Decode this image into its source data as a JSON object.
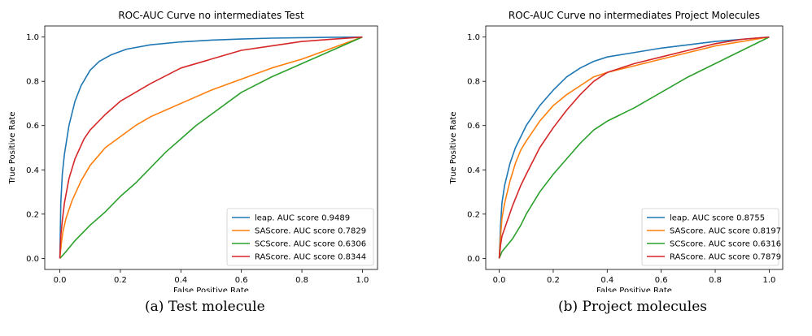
{
  "chart_data": [
    {
      "type": "line",
      "title": "ROC-AUC Curve no intermediates Test",
      "xlabel": "False Positive Rate",
      "ylabel": "True Positive Rate",
      "xlim": [
        -0.05,
        1.05
      ],
      "ylim": [
        -0.05,
        1.05
      ],
      "xticks": [
        "0.0",
        "0.2",
        "0.4",
        "0.6",
        "0.8",
        "1.0"
      ],
      "yticks": [
        "0.0",
        "0.2",
        "0.4",
        "0.6",
        "0.8",
        "1.0"
      ],
      "grid": false,
      "legend": "lower-right",
      "caption": "(a) Test molecule",
      "series": [
        {
          "name": "leap. AUC score 0.9489",
          "color": "#1f77b4",
          "points": [
            [
              0,
              0
            ],
            [
              0.003,
              0.25
            ],
            [
              0.008,
              0.38
            ],
            [
              0.015,
              0.47
            ],
            [
              0.03,
              0.6
            ],
            [
              0.05,
              0.71
            ],
            [
              0.07,
              0.78
            ],
            [
              0.1,
              0.85
            ],
            [
              0.13,
              0.89
            ],
            [
              0.17,
              0.92
            ],
            [
              0.22,
              0.945
            ],
            [
              0.3,
              0.965
            ],
            [
              0.4,
              0.978
            ],
            [
              0.5,
              0.986
            ],
            [
              0.6,
              0.991
            ],
            [
              0.7,
              0.995
            ],
            [
              0.8,
              0.997
            ],
            [
              0.9,
              0.999
            ],
            [
              1,
              1
            ]
          ]
        },
        {
          "name": "SAScore. AUC score 0.7829",
          "color": "#ff7f0e",
          "points": [
            [
              0,
              0
            ],
            [
              0.005,
              0.07
            ],
            [
              0.01,
              0.12
            ],
            [
              0.02,
              0.18
            ],
            [
              0.04,
              0.26
            ],
            [
              0.07,
              0.35
            ],
            [
              0.1,
              0.42
            ],
            [
              0.15,
              0.5
            ],
            [
              0.2,
              0.55
            ],
            [
              0.25,
              0.6
            ],
            [
              0.3,
              0.64
            ],
            [
              0.35,
              0.67
            ],
            [
              0.4,
              0.7
            ],
            [
              0.5,
              0.76
            ],
            [
              0.6,
              0.81
            ],
            [
              0.7,
              0.86
            ],
            [
              0.8,
              0.9
            ],
            [
              0.9,
              0.95
            ],
            [
              1,
              1
            ]
          ]
        },
        {
          "name": "SCScore. AUC score 0.6306",
          "color": "#2ca02c",
          "points": [
            [
              0,
              0
            ],
            [
              0.02,
              0.03
            ],
            [
              0.05,
              0.08
            ],
            [
              0.1,
              0.15
            ],
            [
              0.15,
              0.21
            ],
            [
              0.2,
              0.28
            ],
            [
              0.25,
              0.34
            ],
            [
              0.3,
              0.41
            ],
            [
              0.35,
              0.48
            ],
            [
              0.4,
              0.54
            ],
            [
              0.45,
              0.6
            ],
            [
              0.5,
              0.65
            ],
            [
              0.55,
              0.7
            ],
            [
              0.6,
              0.75
            ],
            [
              0.7,
              0.82
            ],
            [
              0.8,
              0.88
            ],
            [
              0.9,
              0.94
            ],
            [
              1,
              1
            ]
          ]
        },
        {
          "name": "RAScore. AUC score 0.8344",
          "color": "#d62728",
          "points": [
            [
              0,
              0
            ],
            [
              0.003,
              0.1
            ],
            [
              0.008,
              0.17
            ],
            [
              0.015,
              0.25
            ],
            [
              0.03,
              0.36
            ],
            [
              0.05,
              0.45
            ],
            [
              0.08,
              0.54
            ],
            [
              0.1,
              0.58
            ],
            [
              0.15,
              0.65
            ],
            [
              0.2,
              0.71
            ],
            [
              0.25,
              0.75
            ],
            [
              0.3,
              0.79
            ],
            [
              0.4,
              0.86
            ],
            [
              0.5,
              0.9
            ],
            [
              0.6,
              0.94
            ],
            [
              0.7,
              0.96
            ],
            [
              0.8,
              0.98
            ],
            [
              0.9,
              0.99
            ],
            [
              1,
              1
            ]
          ]
        }
      ]
    },
    {
      "type": "line",
      "title": "ROC-AUC Curve no intermediates Project Molecules",
      "xlabel": "False Positive Rate",
      "ylabel": "True Positive Rate",
      "xlim": [
        -0.05,
        1.05
      ],
      "ylim": [
        -0.05,
        1.05
      ],
      "xticks": [
        "0.0",
        "0.2",
        "0.4",
        "0.6",
        "0.8",
        "1.0"
      ],
      "yticks": [
        "0.0",
        "0.2",
        "0.4",
        "0.6",
        "0.8",
        "1.0"
      ],
      "grid": false,
      "legend": "lower-right",
      "caption": "(b) Project molecules",
      "series": [
        {
          "name": "leap. AUC score 0.8755",
          "color": "#1f77b4",
          "points": [
            [
              0,
              0
            ],
            [
              0.005,
              0.15
            ],
            [
              0.01,
              0.25
            ],
            [
              0.02,
              0.33
            ],
            [
              0.04,
              0.43
            ],
            [
              0.06,
              0.5
            ],
            [
              0.08,
              0.55
            ],
            [
              0.1,
              0.6
            ],
            [
              0.15,
              0.69
            ],
            [
              0.2,
              0.76
            ],
            [
              0.25,
              0.82
            ],
            [
              0.3,
              0.86
            ],
            [
              0.35,
              0.89
            ],
            [
              0.4,
              0.91
            ],
            [
              0.5,
              0.93
            ],
            [
              0.6,
              0.95
            ],
            [
              0.7,
              0.965
            ],
            [
              0.8,
              0.98
            ],
            [
              0.9,
              0.99
            ],
            [
              1,
              1
            ]
          ]
        },
        {
          "name": "SAScore. AUC score 0.8197",
          "color": "#ff7f0e",
          "points": [
            [
              0,
              0
            ],
            [
              0.005,
              0.1
            ],
            [
              0.01,
              0.18
            ],
            [
              0.02,
              0.25
            ],
            [
              0.04,
              0.35
            ],
            [
              0.06,
              0.43
            ],
            [
              0.08,
              0.49
            ],
            [
              0.1,
              0.53
            ],
            [
              0.15,
              0.62
            ],
            [
              0.2,
              0.69
            ],
            [
              0.25,
              0.74
            ],
            [
              0.3,
              0.78
            ],
            [
              0.35,
              0.82
            ],
            [
              0.4,
              0.84
            ],
            [
              0.5,
              0.87
            ],
            [
              0.6,
              0.9
            ],
            [
              0.7,
              0.93
            ],
            [
              0.8,
              0.96
            ],
            [
              0.9,
              0.98
            ],
            [
              1,
              1
            ]
          ]
        },
        {
          "name": "SCScore. AUC score 0.6316",
          "color": "#2ca02c",
          "points": [
            [
              0,
              0
            ],
            [
              0.01,
              0.03
            ],
            [
              0.03,
              0.06
            ],
            [
              0.05,
              0.09
            ],
            [
              0.08,
              0.15
            ],
            [
              0.1,
              0.2
            ],
            [
              0.15,
              0.3
            ],
            [
              0.2,
              0.38
            ],
            [
              0.25,
              0.45
            ],
            [
              0.3,
              0.52
            ],
            [
              0.35,
              0.58
            ],
            [
              0.4,
              0.62
            ],
            [
              0.5,
              0.68
            ],
            [
              0.6,
              0.75
            ],
            [
              0.7,
              0.82
            ],
            [
              0.8,
              0.88
            ],
            [
              0.9,
              0.94
            ],
            [
              1,
              1
            ]
          ]
        },
        {
          "name": "RAScore. AUC score 0.7879",
          "color": "#d62728",
          "points": [
            [
              0,
              0
            ],
            [
              0.005,
              0.06
            ],
            [
              0.01,
              0.1
            ],
            [
              0.03,
              0.17
            ],
            [
              0.05,
              0.24
            ],
            [
              0.08,
              0.33
            ],
            [
              0.1,
              0.38
            ],
            [
              0.15,
              0.5
            ],
            [
              0.2,
              0.59
            ],
            [
              0.25,
              0.67
            ],
            [
              0.3,
              0.74
            ],
            [
              0.35,
              0.8
            ],
            [
              0.4,
              0.84
            ],
            [
              0.5,
              0.88
            ],
            [
              0.6,
              0.91
            ],
            [
              0.7,
              0.94
            ],
            [
              0.8,
              0.97
            ],
            [
              0.9,
              0.99
            ],
            [
              1,
              1
            ]
          ]
        }
      ]
    }
  ]
}
